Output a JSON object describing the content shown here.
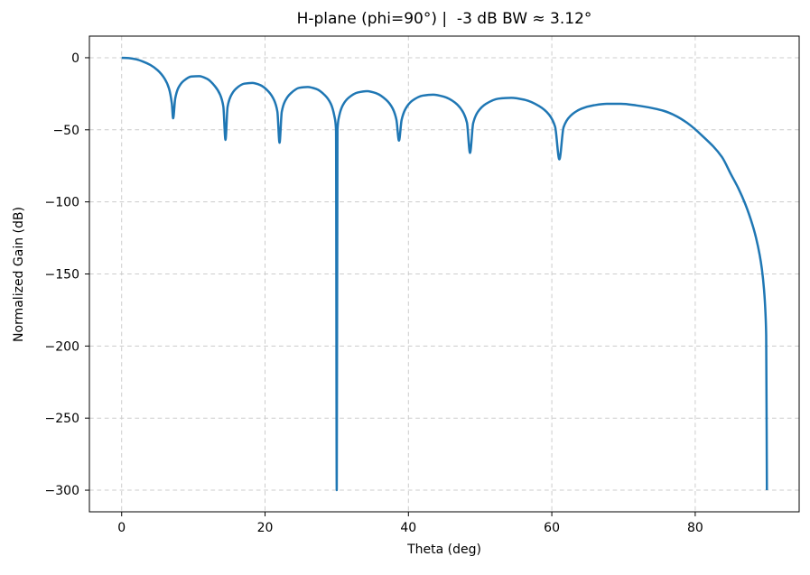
{
  "figure": {
    "background": "#ffffff"
  },
  "chart_data": {
    "type": "line",
    "title": "H-plane (phi=90°) |  -3 dB BW ≈ 3.12°",
    "xlabel": "Theta (deg)",
    "ylabel": "Normalized Gain (dB)",
    "xlim": [
      -4.5,
      94.5
    ],
    "ylim": [
      -315,
      15
    ],
    "xticks": [
      0,
      20,
      40,
      60,
      80
    ],
    "xtick_labels": [
      "0",
      "20",
      "40",
      "60",
      "80"
    ],
    "yticks": [
      0,
      -50,
      -100,
      -150,
      -200,
      -250,
      -300
    ],
    "ytick_labels": [
      "0",
      "−50",
      "−100",
      "−150",
      "−200",
      "−250",
      "−300"
    ],
    "grid": {
      "on": true,
      "style": "dashed",
      "color": "#cccccc"
    },
    "line": {
      "color": "#1f77b4",
      "width": 2.5
    },
    "clip_floor_db": -300,
    "beamwidth_deg_3db": 3.12,
    "null_angles_deg": [
      7.18,
      14.48,
      22.02,
      30,
      38.68,
      48.59,
      61.05,
      90
    ],
    "series": [
      {
        "name": "normalized-gain-db",
        "points": [
          [
            0,
            0
          ],
          [
            1,
            -0.3
          ],
          [
            2,
            -1.1
          ],
          [
            3,
            -2.7
          ],
          [
            4,
            -5.0
          ],
          [
            5,
            -8.6
          ],
          [
            6,
            -14.6
          ],
          [
            6.6,
            -21.3
          ],
          [
            7,
            -31.8
          ],
          [
            7.18,
            -42
          ],
          [
            7.47,
            -28.3
          ],
          [
            7.9,
            -21.0
          ],
          [
            8.63,
            -16.1
          ],
          [
            9.72,
            -13.0
          ],
          [
            10.81,
            -12.8
          ],
          [
            11.9,
            -14.6
          ],
          [
            13,
            -19.7
          ],
          [
            13.74,
            -25.7
          ],
          [
            14.18,
            -33.8
          ],
          [
            14.48,
            -57
          ],
          [
            14.77,
            -34.2
          ],
          [
            15.22,
            -26.6
          ],
          [
            15.96,
            -21.4
          ],
          [
            17.09,
            -18.0
          ],
          [
            18.21,
            -17.5
          ],
          [
            19.35,
            -19.0
          ],
          [
            20.49,
            -23.5
          ],
          [
            21.26,
            -29.4
          ],
          [
            21.72,
            -37.4
          ],
          [
            22.02,
            -59
          ],
          [
            22.33,
            -37.6
          ],
          [
            22.8,
            -30.0
          ],
          [
            23.58,
            -24.7
          ],
          [
            24.76,
            -20.9
          ],
          [
            25.94,
            -20.3
          ],
          [
            27.15,
            -21.7
          ],
          [
            28.36,
            -26.1
          ],
          [
            29.18,
            -32.0
          ],
          [
            29.67,
            -40.5
          ],
          [
            29.9,
            -50
          ],
          [
            30,
            -300
          ],
          [
            30.1,
            -50
          ],
          [
            30.33,
            -40.7
          ],
          [
            30.83,
            -33.1
          ],
          [
            31.67,
            -27.7
          ],
          [
            32.94,
            -24.1
          ],
          [
            34.23,
            -23.2
          ],
          [
            35.54,
            -24.7
          ],
          [
            36.87,
            -29.1
          ],
          [
            37.78,
            -35.0
          ],
          [
            38.32,
            -42.9
          ],
          [
            38.68,
            -57.5
          ],
          [
            39.05,
            -43.1
          ],
          [
            39.6,
            -35.4
          ],
          [
            40.54,
            -29.8
          ],
          [
            41.99,
            -26.3
          ],
          [
            43.43,
            -25.6
          ],
          [
            44.93,
            -27.0
          ],
          [
            46.47,
            -31.0
          ],
          [
            47.53,
            -37.0
          ],
          [
            48.16,
            -45.0
          ],
          [
            48.59,
            -66
          ],
          [
            49.03,
            -45.4
          ],
          [
            49.69,
            -37.5
          ],
          [
            50.81,
            -32.0
          ],
          [
            52.53,
            -28.4
          ],
          [
            54.34,
            -27.8
          ],
          [
            56.23,
            -29.2
          ],
          [
            58.21,
            -33.5
          ],
          [
            59.62,
            -39.5
          ],
          [
            60.46,
            -47.9
          ],
          [
            61.05,
            -70.5
          ],
          [
            61.64,
            -48.2
          ],
          [
            62.57,
            -40.5
          ],
          [
            64.16,
            -35.3
          ],
          [
            65.86,
            -33.0
          ],
          [
            67.67,
            -32.0
          ],
          [
            69.64,
            -32.0
          ],
          [
            71.81,
            -33.1
          ],
          [
            74.26,
            -35.2
          ],
          [
            75.64,
            -36.9
          ],
          [
            77.16,
            -40.0
          ],
          [
            78.88,
            -45.2
          ],
          [
            80.93,
            -53.9
          ],
          [
            83.72,
            -68.8
          ],
          [
            85,
            -81.0
          ],
          [
            86,
            -90.4
          ],
          [
            87,
            -101.7
          ],
          [
            88,
            -116.1
          ],
          [
            88.5,
            -125.2
          ],
          [
            89,
            -137.0
          ],
          [
            89.3,
            -146.6
          ],
          [
            89.6,
            -160.9
          ],
          [
            89.8,
            -177.1
          ],
          [
            89.9,
            -192.8
          ],
          [
            90,
            -300
          ]
        ]
      }
    ]
  }
}
